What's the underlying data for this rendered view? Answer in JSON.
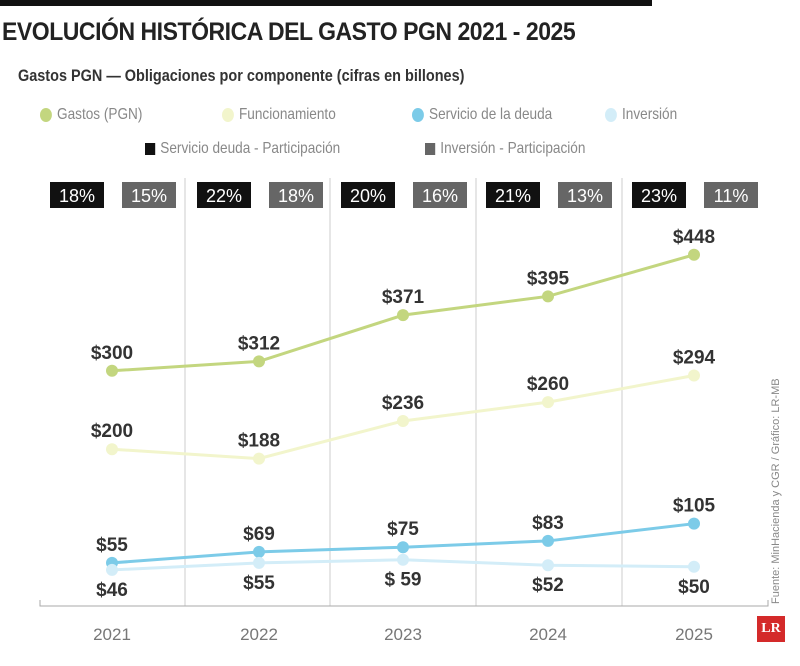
{
  "title": "EVOLUCIÓN HISTÓRICA DEL GASTO PGN 2021 - 2025",
  "source": "Fuente: MinHacienda y CGR / Gráfico: LR-MB",
  "logo": "LR",
  "chart_data": {
    "type": "line",
    "title": "Gastos PGN — Obligaciones por componente (cifras en billones)",
    "categories": [
      "2021",
      "2022",
      "2023",
      "2024",
      "2025"
    ],
    "ylim": [
      0,
      460
    ],
    "grid": "vertical separators",
    "legend_placement": "top",
    "series": [
      {
        "name": "Gastos (PGN)",
        "color": "#c3d67f",
        "values": [
          300,
          312,
          371,
          395,
          448
        ],
        "labels": [
          "$300",
          "$312",
          "$371",
          "$395",
          "$448"
        ]
      },
      {
        "name": "Funcionamiento",
        "color": "#f2f5cc",
        "values": [
          200,
          188,
          236,
          260,
          294
        ],
        "labels": [
          "$200",
          "$188",
          "$236",
          "$260",
          "$294"
        ]
      },
      {
        "name": "Servicio de la deuda",
        "color": "#7ccbe8",
        "values": [
          55,
          69,
          75,
          83,
          105
        ],
        "labels": [
          "$55",
          "$69",
          "$75",
          "$83",
          "$105"
        ]
      },
      {
        "name": "Inversión",
        "color": "#d3edf8",
        "values": [
          46,
          55,
          59,
          52,
          50
        ],
        "labels": [
          "$46",
          "$55",
          "$ 59",
          "$52",
          "$50"
        ]
      }
    ],
    "share_series": [
      {
        "name": "Servicio deuda - Participación",
        "color": "#111111",
        "values": [
          "18%",
          "22%",
          "20%",
          "21%",
          "23%"
        ]
      },
      {
        "name": "Inversión - Participación",
        "color": "#666666",
        "values": [
          "15%",
          "18%",
          "16%",
          "13%",
          "11%"
        ]
      }
    ]
  }
}
